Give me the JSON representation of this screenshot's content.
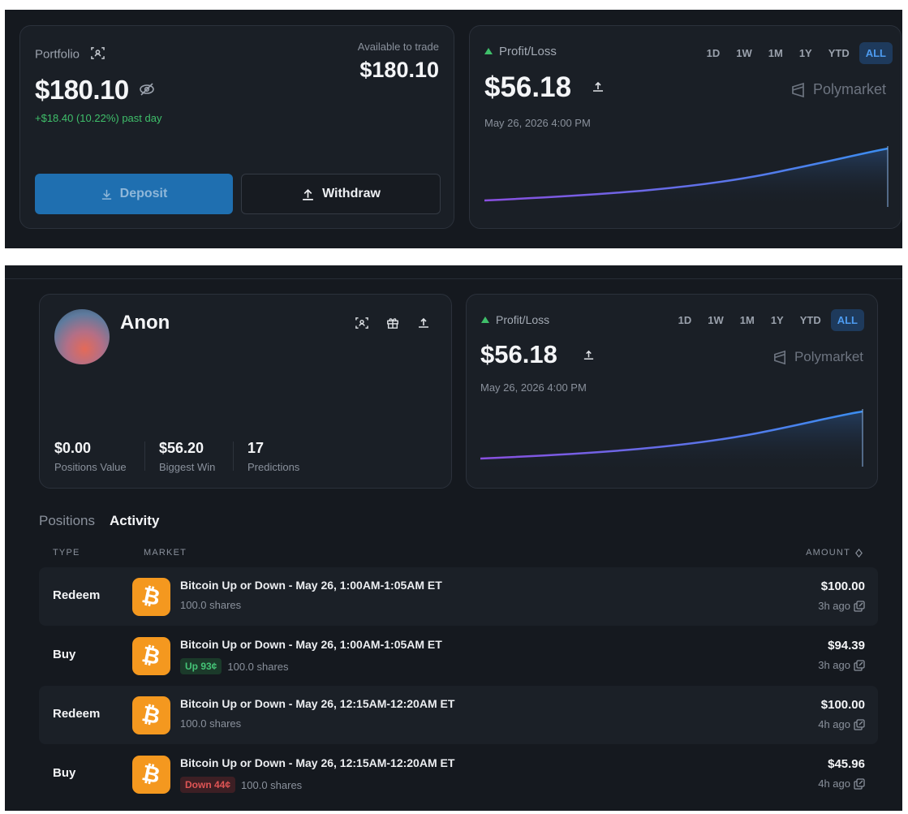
{
  "portfolio": {
    "title": "Portfolio",
    "balance": "$180.10",
    "change": "+$18.40 (10.22%) past day",
    "available_label": "Available to trade",
    "available_value": "$180.10",
    "deposit_label": "Deposit",
    "withdraw_label": "Withdraw"
  },
  "pl_top": {
    "label": "Profit/Loss",
    "value": "$56.18",
    "date": "May 26, 2026 4:00 PM",
    "brand": "Polymarket",
    "ranges": [
      "1D",
      "1W",
      "1M",
      "1Y",
      "YTD",
      "ALL"
    ],
    "active_range": "ALL"
  },
  "profile": {
    "name": "Anon",
    "stats": [
      {
        "value": "$0.00",
        "label": "Positions Value"
      },
      {
        "value": "$56.20",
        "label": "Biggest Win"
      },
      {
        "value": "17",
        "label": "Predictions"
      }
    ]
  },
  "pl_bottom": {
    "label": "Profit/Loss",
    "value": "$56.18",
    "date": "May 26, 2026 4:00 PM",
    "brand": "Polymarket",
    "ranges": [
      "1D",
      "1W",
      "1M",
      "1Y",
      "YTD",
      "ALL"
    ],
    "active_range": "ALL"
  },
  "tabs": [
    "Positions",
    "Activity"
  ],
  "active_tab": "Activity",
  "table": {
    "headers": {
      "type": "TYPE",
      "market": "MARKET",
      "amount": "AMOUNT"
    },
    "rows": [
      {
        "type": "Redeem",
        "title": "Bitcoin Up or Down - May 26, 1:00AM-1:05AM ET",
        "badge": "",
        "shares": "100.0 shares",
        "amount": "$100.00",
        "time": "3h ago"
      },
      {
        "type": "Buy",
        "title": "Bitcoin Up or Down - May 26, 1:00AM-1:05AM ET",
        "badge": "Up 93¢",
        "shares": "100.0 shares",
        "amount": "$94.39",
        "time": "3h ago"
      },
      {
        "type": "Redeem",
        "title": "Bitcoin Up or Down - May 26, 12:15AM-12:20AM ET",
        "badge": "",
        "shares": "100.0 shares",
        "amount": "$100.00",
        "time": "4h ago"
      },
      {
        "type": "Buy",
        "title": "Bitcoin Up or Down - May 26, 12:15AM-12:20AM ET",
        "badge": "Down 44¢",
        "shares": "100.0 shares",
        "amount": "$45.96",
        "time": "4h ago"
      }
    ]
  },
  "colors": {
    "positive": "#3fbf6a",
    "negative": "#e05555",
    "accent": "#4d9bf0",
    "bitcoin": "#f4981f",
    "chart_line_start": "#8a4fe0",
    "chart_line_end": "#3b8ef0"
  },
  "icons": [
    "scan-icon",
    "eye-off-icon",
    "download-icon",
    "upload-icon",
    "share-icon",
    "gift-icon",
    "polymarket-logo-icon",
    "bitcoin-icon",
    "copy-link-icon",
    "sort-icon"
  ]
}
